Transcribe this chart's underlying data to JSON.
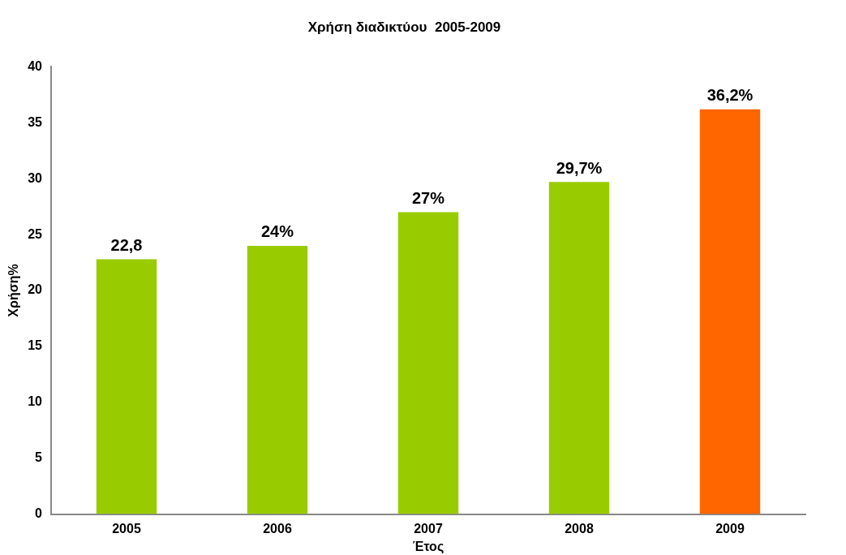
{
  "chart_data": {
    "type": "bar",
    "title": "Χρήση διαδικτύου  2005-2009",
    "xlabel": "Έτος",
    "ylabel": "Χρήση%",
    "categories": [
      "2005",
      "2006",
      "2007",
      "2008",
      "2009"
    ],
    "values": [
      22.8,
      24,
      27,
      29.7,
      36.2
    ],
    "colors": [
      "#99cc00",
      "#99cc00",
      "#99cc00",
      "#99cc00",
      "#ff6600"
    ],
    "value_labels": [
      "22,8",
      "24%",
      "27%",
      "29,7%",
      "36,2%"
    ],
    "ylim": [
      0,
      40
    ],
    "yticks": [
      0,
      5,
      10,
      15,
      20,
      25,
      30,
      35,
      40
    ],
    "grid": false,
    "legend": false
  }
}
